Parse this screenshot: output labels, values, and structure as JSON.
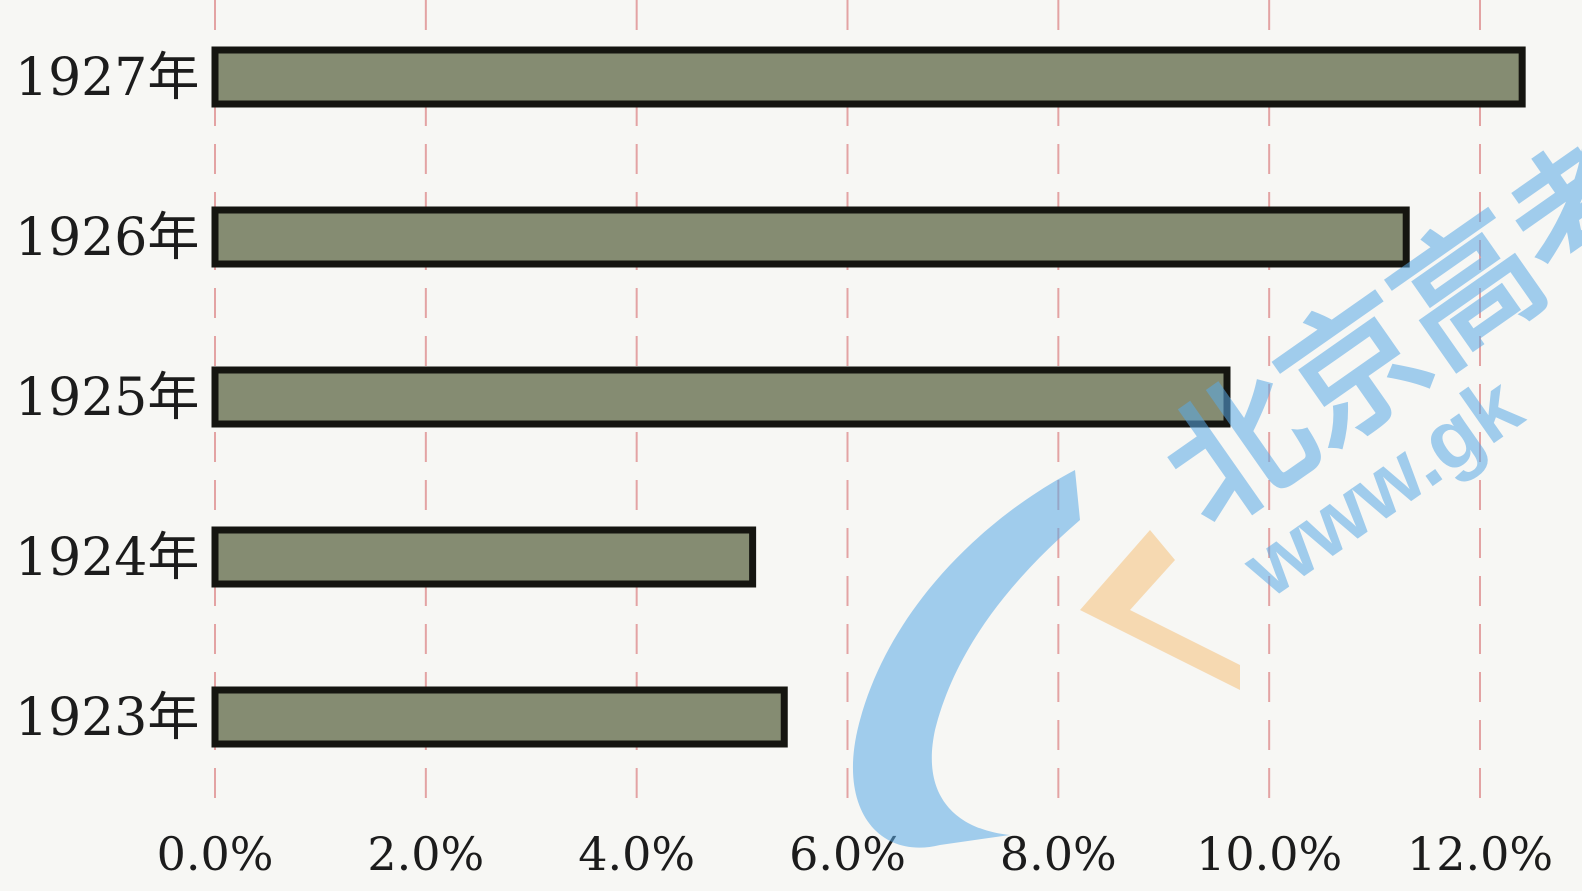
{
  "chart_data": {
    "type": "bar",
    "orientation": "horizontal",
    "categories": [
      "1927年",
      "1926年",
      "1925年",
      "1924年",
      "1923年"
    ],
    "values": [
      12.4,
      11.3,
      9.6,
      5.1,
      5.4
    ],
    "xlim": [
      0,
      12
    ],
    "x_ticks": [
      "0.0%",
      "2.0%",
      "4.0%",
      "6.0%",
      "8.0%",
      "10.0%",
      "12.0%"
    ],
    "title": "",
    "xlabel": "",
    "ylabel": "",
    "grid": "vertical",
    "legend": "none",
    "colors": {
      "bar_fill": "#858c72",
      "bar_stroke": "#151510",
      "grid": "#e3a3a3",
      "background": "#f7f7f4"
    }
  },
  "watermark": {
    "logo_text": "北京高考",
    "url_text": "www.gk",
    "colors": {
      "primary": "#5aa9e6",
      "accent": "#f6c27a"
    }
  }
}
